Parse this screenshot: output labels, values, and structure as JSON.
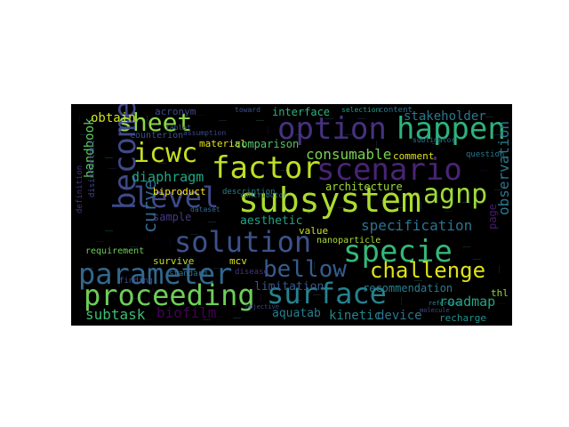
{
  "cloud": {
    "background": "#000000",
    "colormap": [
      "#440154",
      "#3b528b",
      "#21918c",
      "#5ec962",
      "#fde725"
    ],
    "words": [
      {
        "text": "sheet",
        "color": "#8fd744"
      },
      {
        "text": "option",
        "color": "#46327e"
      },
      {
        "text": "happen",
        "color": "#2db27d"
      },
      {
        "text": "icwc",
        "color": "#c5e021"
      },
      {
        "text": "factor",
        "color": "#bddf26"
      },
      {
        "text": "scenario",
        "color": "#482475"
      },
      {
        "text": "become",
        "color": "#3e4a89"
      },
      {
        "text": "level",
        "color": "#3e4a89"
      },
      {
        "text": "subsystem",
        "color": "#addc30"
      },
      {
        "text": "agnp",
        "color": "#9fda3a"
      },
      {
        "text": "solution",
        "color": "#3b528b"
      },
      {
        "text": "specie",
        "color": "#35b779"
      },
      {
        "text": "parameter",
        "color": "#31688e"
      },
      {
        "text": "bellow",
        "color": "#365c8d"
      },
      {
        "text": "challenge",
        "color": "#dde318"
      },
      {
        "text": "proceeding",
        "color": "#6ece58"
      },
      {
        "text": "surface",
        "color": "#26828e"
      },
      {
        "text": "obtain",
        "color": "#d2e21b"
      },
      {
        "text": "stakeholder",
        "color": "#2a788e"
      },
      {
        "text": "consumable",
        "color": "#7ad151"
      },
      {
        "text": "handbook",
        "color": "#5ec962"
      },
      {
        "text": "diaphragm",
        "color": "#22a884"
      },
      {
        "text": "curve",
        "color": "#31688e"
      },
      {
        "text": "observation",
        "color": "#2a788e"
      },
      {
        "text": "specification",
        "color": "#2c728e"
      },
      {
        "text": "aesthetic",
        "color": "#20a486"
      },
      {
        "text": "architecture",
        "color": "#9fda3a"
      },
      {
        "text": "interface",
        "color": "#2db27d"
      },
      {
        "text": "counterion",
        "color": "#3b528b"
      },
      {
        "text": "acronym",
        "color": "#3e4a89"
      },
      {
        "text": "material",
        "color": "#e5e419"
      },
      {
        "text": "comparison",
        "color": "#52c569"
      },
      {
        "text": "comment",
        "color": "#dde318"
      },
      {
        "text": "content",
        "color": "#2c728e"
      },
      {
        "text": "question",
        "color": "#2a788e"
      },
      {
        "text": "biproduct",
        "color": "#fde725"
      },
      {
        "text": "sample",
        "color": "#443983"
      },
      {
        "text": "value",
        "color": "#cae11f"
      },
      {
        "text": "nanoparticle",
        "color": "#addc30"
      },
      {
        "text": "survive",
        "color": "#c2df23"
      },
      {
        "text": "mcv",
        "color": "#d8e219"
      },
      {
        "text": "requirement",
        "color": "#6ece58"
      },
      {
        "text": "recommendation",
        "color": "#287d8e"
      },
      {
        "text": "limitation",
        "color": "#39568c"
      },
      {
        "text": "roadmap",
        "color": "#21a685"
      },
      {
        "text": "subtask",
        "color": "#3dbc74"
      },
      {
        "text": "biofilm",
        "color": "#440154"
      },
      {
        "text": "aquatab",
        "color": "#277f8e"
      },
      {
        "text": "kinetic",
        "color": "#25858e"
      },
      {
        "text": "device",
        "color": "#2c728e"
      },
      {
        "text": "recharge",
        "color": "#20928c"
      },
      {
        "text": "thl",
        "color": "#95d840"
      },
      {
        "text": "page",
        "color": "#481b6d"
      },
      {
        "text": "definition",
        "color": "#46337f"
      },
      {
        "text": "disinfectant",
        "color": "#3f4889"
      },
      {
        "text": "disease",
        "color": "#46327e"
      },
      {
        "text": "standard",
        "color": "#2e6f8e"
      },
      {
        "text": "finding",
        "color": "#3b528b"
      },
      {
        "text": "description",
        "color": "#26828e"
      },
      {
        "text": "selection",
        "color": "#1f9e89"
      },
      {
        "text": "sublimator",
        "color": "#2c728e"
      },
      {
        "text": "toward",
        "color": "#3a548c"
      },
      {
        "text": "tablet",
        "color": "#365d8d"
      },
      {
        "text": "assumption",
        "color": "#3e4a89"
      },
      {
        "text": "contributor",
        "color": "#2a788e"
      },
      {
        "text": "dataset",
        "color": "#2f6b8e"
      },
      {
        "text": "molecule",
        "color": "#3c4f8a"
      },
      {
        "text": "objective",
        "color": "#414487"
      },
      {
        "text": "reference",
        "color": "#238a8d"
      }
    ]
  }
}
